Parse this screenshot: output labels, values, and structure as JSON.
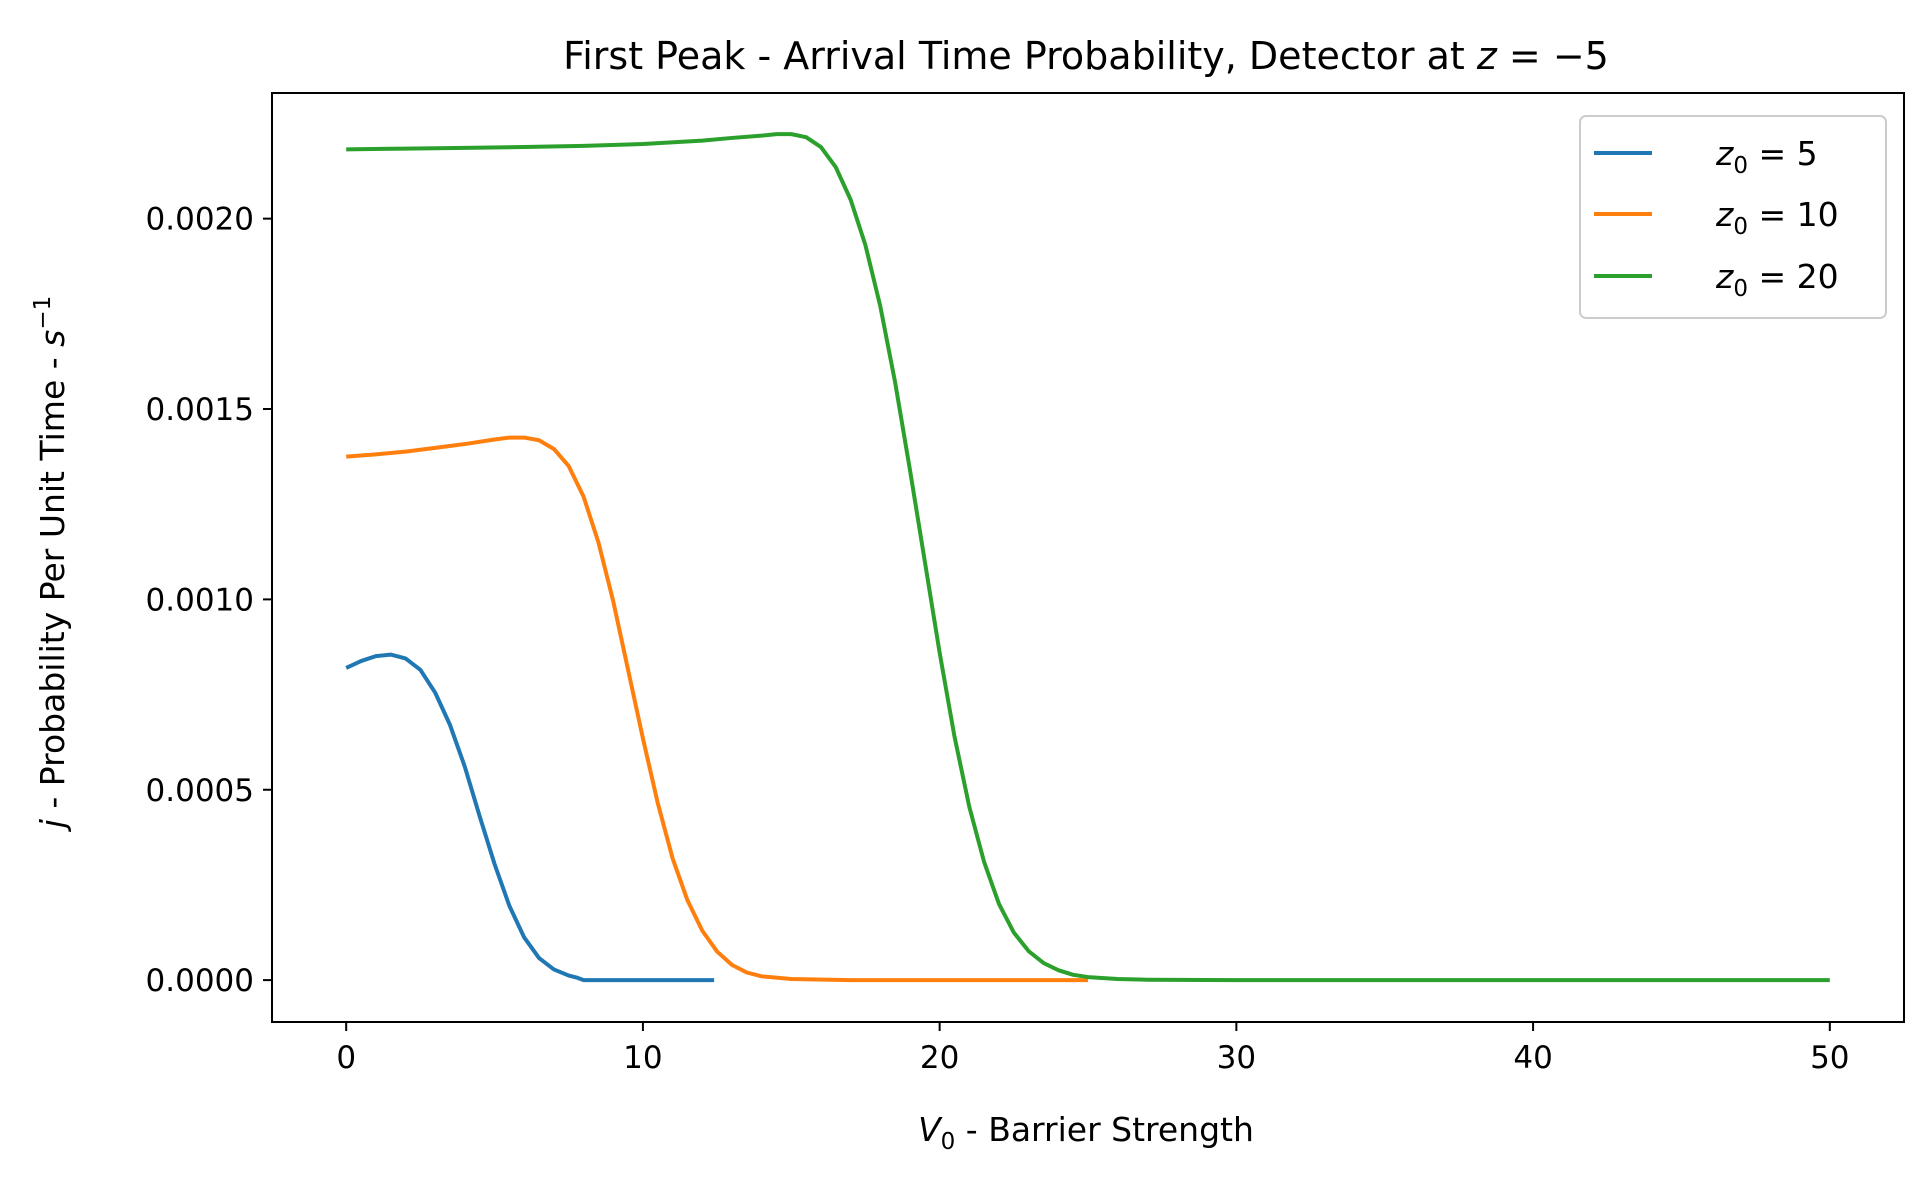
{
  "chart_data": {
    "type": "line",
    "title": "First Peak - Arrival Time Probability, Detector at",
    "title_math": {
      "var": "z",
      "rel": " = ",
      "val": "−5"
    },
    "xlabel": {
      "var": "V",
      "sub": "0",
      "text": " - Barrier Strength"
    },
    "ylabel": {
      "var": "j",
      "text": " - Probability Per Unit Time - ",
      "unit": "s",
      "sup": "−1"
    },
    "xlim": [
      -2.5,
      52.5
    ],
    "ylim": [
      -0.00011,
      0.00233
    ],
    "xticks": [
      0,
      10,
      20,
      30,
      40,
      50
    ],
    "xtick_labels": [
      "0",
      "10",
      "20",
      "30",
      "40",
      "50"
    ],
    "yticks": [
      0,
      0.0005,
      0.001,
      0.0015,
      0.002
    ],
    "ytick_labels": [
      "0.0000",
      "0.0005",
      "0.0010",
      "0.0015",
      "0.0020"
    ],
    "grid": false,
    "legend_position": "top-right",
    "series": [
      {
        "name": "z₀ = 5",
        "legend": {
          "var": "z",
          "sub": "0",
          "rest": " = 5"
        },
        "color": "#1f77b4",
        "x": [
          0,
          0.5,
          1,
          1.5,
          2,
          2.5,
          3,
          3.5,
          4,
          4.5,
          5,
          5.5,
          6,
          6.5,
          7,
          7.5,
          7.8,
          8,
          9,
          10,
          11,
          12.4
        ],
        "y": [
          0.00082,
          0.000838,
          0.000851,
          0.000855,
          0.000845,
          0.000815,
          0.000755,
          0.00067,
          0.00056,
          0.00043,
          0.000305,
          0.000195,
          0.000112,
          5.8e-05,
          2.8e-05,
          1.2e-05,
          6e-06,
          0,
          0,
          0,
          0,
          0
        ]
      },
      {
        "name": "z₀ = 10",
        "legend": {
          "var": "z",
          "sub": "0",
          "rest": " = 10"
        },
        "color": "#ff7f0e",
        "x": [
          0,
          1,
          2,
          3,
          4,
          5,
          5.5,
          6,
          6.5,
          7,
          7.5,
          8,
          8.5,
          9,
          9.5,
          10,
          10.5,
          11,
          11.5,
          12,
          12.5,
          13,
          13.5,
          14,
          15,
          17,
          20,
          25
        ],
        "y": [
          0.001375,
          0.001381,
          0.001388,
          0.001398,
          0.001408,
          0.00142,
          0.001425,
          0.001425,
          0.001418,
          0.001395,
          0.00135,
          0.00127,
          0.00115,
          0.000995,
          0.000815,
          0.000635,
          0.000465,
          0.00032,
          0.00021,
          0.00013,
          7.5e-05,
          4e-05,
          2e-05,
          1e-05,
          3e-06,
          0,
          0,
          0
        ]
      },
      {
        "name": "z₀ = 20",
        "legend": {
          "var": "z",
          "sub": "0",
          "rest": " = 20"
        },
        "color": "#2ca02c",
        "x": [
          0,
          2,
          4,
          6,
          8,
          10,
          12,
          13,
          14,
          14.5,
          15,
          15.5,
          16,
          16.5,
          17,
          17.5,
          18,
          18.5,
          19,
          19.5,
          20,
          20.5,
          21,
          21.5,
          22,
          22.5,
          23,
          23.5,
          24,
          24.5,
          25,
          26,
          27,
          30,
          40,
          50
        ],
        "y": [
          0.002182,
          0.002184,
          0.002186,
          0.002188,
          0.002191,
          0.002196,
          0.002205,
          0.002212,
          0.002218,
          0.002222,
          0.002222,
          0.002214,
          0.002188,
          0.002135,
          0.00205,
          0.00193,
          0.00177,
          0.00157,
          0.00134,
          0.0011,
          0.00086,
          0.00064,
          0.000455,
          0.00031,
          0.0002,
          0.000125,
          7.6e-05,
          4.5e-05,
          2.6e-05,
          1.4e-05,
          8e-06,
          3e-06,
          1e-06,
          0,
          0,
          0
        ]
      }
    ]
  }
}
